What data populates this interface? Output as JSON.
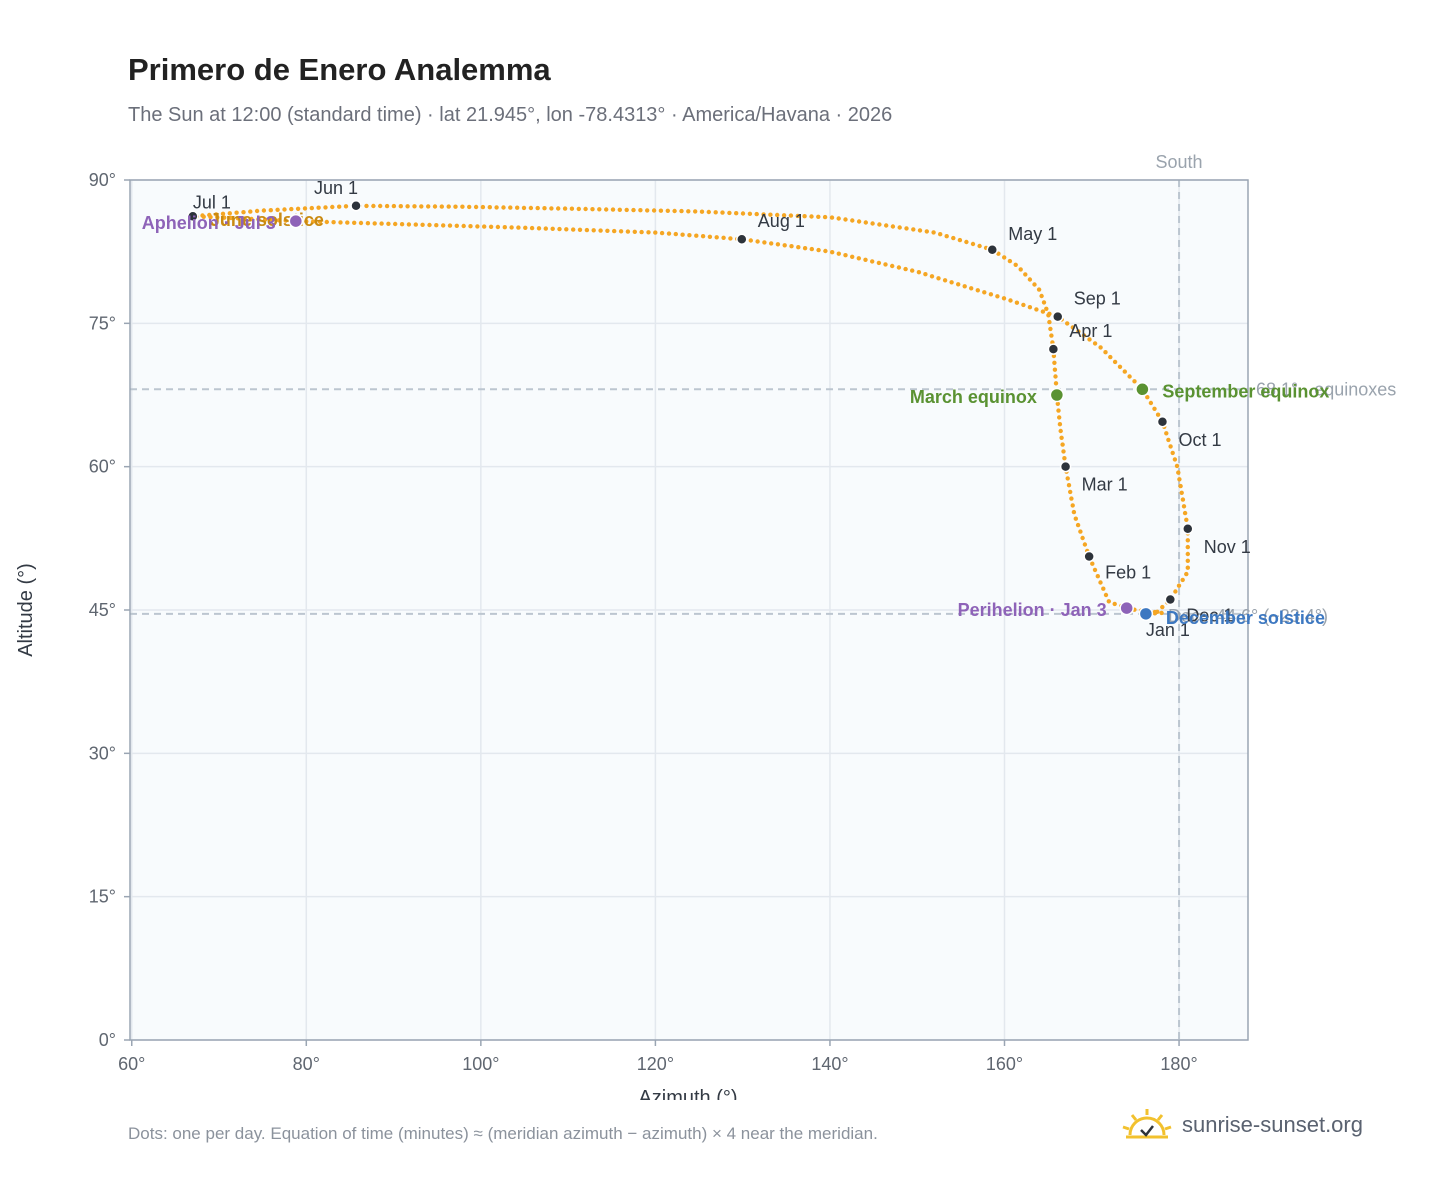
{
  "title": "Primero de Enero Analemma",
  "subtitle": "The Sun at 12:00 (standard time) · lat 21.945°, lon -78.4313° · America/Havana · 2026",
  "footnote": "Dots: one per day. Equation of time (minutes) ≈ (meridian azimuth − azimuth) × 4 near the meridian.",
  "brand": {
    "text": "sunrise-sunset.org",
    "icon": "sun-check-icon"
  },
  "colors": {
    "curve": "#f5a623",
    "month_dot": "#2d333b",
    "equinox": "#5a9232",
    "june_solstice": "#c98a12",
    "december_solstice": "#3d78c1",
    "apsis": "#8e63b8",
    "plot_bg": "#f8fbfd",
    "grid": "#e3e8ee",
    "frame": "#9aa5b3",
    "ref_line": "#bcc6d0"
  },
  "chart_data": {
    "type": "scatter",
    "xlabel": "Azimuth (°)",
    "ylabel": "Altitude (°)",
    "xlim": [
      59.8,
      187.9
    ],
    "ylim": [
      0,
      90
    ],
    "xticks": [
      60,
      80,
      100,
      120,
      140,
      160,
      180
    ],
    "yticks": [
      0,
      15,
      30,
      45,
      60,
      75,
      90
    ],
    "xtick_labels": [
      "60°",
      "80°",
      "100°",
      "120°",
      "140°",
      "160°",
      "180°"
    ],
    "ytick_labels": [
      "0°",
      "15°",
      "30°",
      "45°",
      "60°",
      "75°",
      "90°"
    ],
    "grid": true,
    "legend": "none",
    "reference_lines": {
      "south": {
        "azimuth": 180,
        "label": "South"
      },
      "equinox_altitude": {
        "altitude": 68.1,
        "label": "68.1° · equinoxes"
      },
      "december_altitude": {
        "altitude": 44.6,
        "label": "Dec · 44.6° (−23.4°)"
      }
    },
    "daily_path": [
      [
        178.0,
        44.7
      ],
      [
        175.0,
        45.0
      ],
      [
        172.0,
        45.8
      ],
      [
        169.7,
        50.6
      ],
      [
        168.0,
        55.0
      ],
      [
        167.0,
        60.0
      ],
      [
        166.4,
        64.0
      ],
      [
        166.0,
        67.5
      ],
      [
        165.6,
        72.3
      ],
      [
        165.0,
        76.0
      ],
      [
        164.0,
        78.5
      ],
      [
        161.5,
        81.0
      ],
      [
        158.6,
        82.7
      ],
      [
        152.0,
        84.5
      ],
      [
        140.0,
        86.1
      ],
      [
        125.0,
        86.7
      ],
      [
        110.0,
        87.0
      ],
      [
        98.0,
        87.2
      ],
      [
        85.7,
        87.3
      ],
      [
        75.0,
        86.8
      ],
      [
        67.0,
        86.2
      ],
      [
        72.0,
        86.0
      ],
      [
        78.8,
        85.7
      ],
      [
        90.0,
        85.4
      ],
      [
        105.0,
        85.0
      ],
      [
        120.0,
        84.5
      ],
      [
        129.9,
        83.8
      ],
      [
        140.0,
        82.5
      ],
      [
        150.0,
        80.4
      ],
      [
        160.0,
        77.6
      ],
      [
        166.1,
        75.7
      ],
      [
        171.0,
        72.5
      ],
      [
        175.8,
        68.1
      ],
      [
        178.1,
        64.7
      ],
      [
        179.8,
        60.0
      ],
      [
        181.0,
        53.5
      ],
      [
        181.0,
        49.0
      ],
      [
        179.0,
        46.1
      ],
      [
        177.5,
        44.8
      ],
      [
        176.2,
        44.6
      ],
      [
        178.0,
        44.7
      ]
    ],
    "month_markers": [
      {
        "label": "Jan 1",
        "azimuth": 176.2,
        "altitude": 44.6
      },
      {
        "label": "Feb 1",
        "azimuth": 169.7,
        "altitude": 50.6
      },
      {
        "label": "Mar 1",
        "azimuth": 167.0,
        "altitude": 60.0
      },
      {
        "label": "Apr 1",
        "azimuth": 165.6,
        "altitude": 72.3
      },
      {
        "label": "May 1",
        "azimuth": 158.6,
        "altitude": 82.7
      },
      {
        "label": "Jun 1",
        "azimuth": 85.7,
        "altitude": 87.3
      },
      {
        "label": "Jul 1",
        "azimuth": 67.0,
        "altitude": 86.2
      },
      {
        "label": "Aug 1",
        "azimuth": 129.9,
        "altitude": 83.8
      },
      {
        "label": "Sep 1",
        "azimuth": 166.1,
        "altitude": 75.7
      },
      {
        "label": "Oct 1",
        "azimuth": 178.1,
        "altitude": 64.7
      },
      {
        "label": "Nov 1",
        "azimuth": 181.0,
        "altitude": 53.5
      },
      {
        "label": "Dec 1",
        "azimuth": 179.0,
        "altitude": 46.1
      }
    ],
    "events": [
      {
        "label": "March equinox",
        "azimuth": 166.0,
        "altitude": 67.5,
        "color": "#5a9232"
      },
      {
        "label": "September equinox",
        "azimuth": 175.8,
        "altitude": 68.1,
        "color": "#5a9232"
      },
      {
        "label": "June solstice",
        "azimuth": 78.8,
        "altitude": 85.7,
        "color": "#c98a12"
      },
      {
        "label": "December solstice",
        "azimuth": 176.2,
        "altitude": 44.6,
        "color": "#3d78c1"
      },
      {
        "label": "Perihelion · Jan 3",
        "azimuth": 174.0,
        "altitude": 45.2,
        "color": "#8e63b8"
      },
      {
        "label": "Aphelion · Jul 3",
        "azimuth": 78.8,
        "altitude": 85.7,
        "color": "#8e63b8"
      }
    ]
  }
}
